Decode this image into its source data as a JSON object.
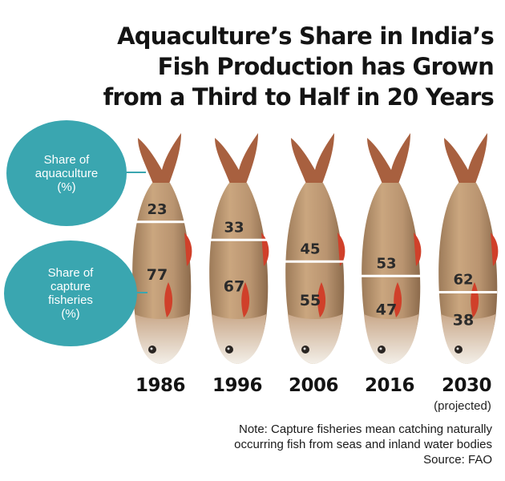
{
  "title_lines": [
    "Aquaculture’s Share in India’s",
    "Fish Production has Grown",
    "from a Third to Half in 20 Years"
  ],
  "legend": {
    "aquaculture_lines": [
      "Share of",
      "aquaculture",
      "(%)"
    ],
    "capture_lines": [
      "Share of",
      "capture",
      "fisheries",
      "(%)"
    ],
    "color": "#3aa6b0"
  },
  "colors": {
    "fish_body": "#c4a07a",
    "fish_belly": "#f1ece3",
    "fish_fin": "#d0402a",
    "divider": "#ffffff",
    "text": "#141414"
  },
  "chart_data": {
    "type": "stacked-bar",
    "title": "Aquaculture’s Share in India’s Fish Production has Grown from a Third to Half in 20 Years",
    "categories": [
      "1986",
      "1996",
      "2006",
      "2016",
      "2030"
    ],
    "category_sublabels": [
      "",
      "",
      "",
      "",
      "(projected)"
    ],
    "series": [
      {
        "name": "Share of aquaculture (%)",
        "values": [
          23,
          33,
          45,
          53,
          62
        ]
      },
      {
        "name": "Share of capture fisheries (%)",
        "values": [
          77,
          67,
          55,
          47,
          38
        ]
      }
    ],
    "unit": "%",
    "ylim": [
      0,
      100
    ]
  },
  "notes": {
    "lines": [
      "Note: Capture fisheries mean catching naturally",
      "occurring fish from seas and inland water bodies"
    ],
    "source": "Source: FAO"
  }
}
